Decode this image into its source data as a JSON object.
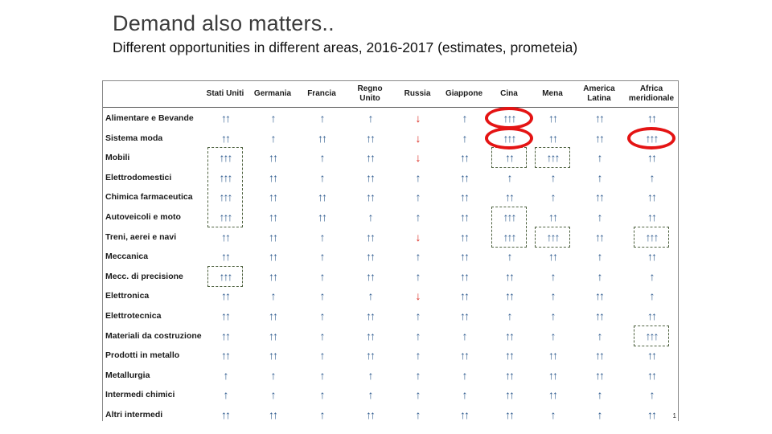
{
  "title": "Demand also matters..",
  "subtitle": "Different opportunities in different areas, 2016-2017 (estimates, prometeia)",
  "page_number": "1",
  "colors": {
    "up": "#2f5b8f",
    "down": "#d9261c",
    "highlight": "#e41414",
    "dashed_box": "#4f6240"
  },
  "symbols": {
    "up": "↑",
    "down": "↓"
  },
  "table": {
    "columns": [
      "Stati Uniti",
      "Germania",
      "Francia",
      "Regno\nUnito",
      "Russia",
      "Giappone",
      "Cina",
      "Mena",
      "America\nLatina",
      "Africa\nmeridionale"
    ],
    "rows": [
      {
        "label": "Alimentare e Bevande",
        "cells": [
          "2",
          "1",
          "1",
          "1",
          "d",
          "1",
          "3",
          "2",
          "2",
          "2"
        ]
      },
      {
        "label": "Sistema moda",
        "cells": [
          "2",
          "1",
          "2",
          "2",
          "d",
          "1",
          "3",
          "2",
          "2",
          "3"
        ]
      },
      {
        "label": "Mobili",
        "cells": [
          "3",
          "2",
          "1",
          "2",
          "d",
          "2",
          "2",
          "3",
          "1",
          "2"
        ]
      },
      {
        "label": "Elettrodomestici",
        "cells": [
          "3",
          "2",
          "1",
          "2",
          "1",
          "2",
          "1",
          "1",
          "1",
          "1"
        ]
      },
      {
        "label": "Chimica farmaceutica",
        "cells": [
          "3",
          "2",
          "2",
          "2",
          "1",
          "2",
          "2",
          "1",
          "2",
          "2"
        ]
      },
      {
        "label": "Autoveicoli e moto",
        "cells": [
          "3",
          "2",
          "2",
          "1",
          "1",
          "2",
          "3",
          "2",
          "1",
          "2"
        ]
      },
      {
        "label": "Treni, aerei e navi",
        "cells": [
          "2",
          "2",
          "1",
          "2",
          "d",
          "2",
          "3",
          "3",
          "2",
          "3"
        ]
      },
      {
        "label": "Meccanica",
        "cells": [
          "2",
          "2",
          "1",
          "2",
          "1",
          "2",
          "1",
          "2",
          "1",
          "2"
        ]
      },
      {
        "label": "Mecc. di precisione",
        "cells": [
          "3",
          "2",
          "1",
          "2",
          "1",
          "2",
          "2",
          "1",
          "1",
          "1"
        ]
      },
      {
        "label": "Elettronica",
        "cells": [
          "2",
          "1",
          "1",
          "1",
          "d",
          "2",
          "2",
          "1",
          "2",
          "1"
        ]
      },
      {
        "label": "Elettrotecnica",
        "cells": [
          "2",
          "2",
          "1",
          "2",
          "1",
          "2",
          "1",
          "1",
          "2",
          "2"
        ]
      },
      {
        "label": "Materiali da costruzione",
        "cells": [
          "2",
          "2",
          "1",
          "2",
          "1",
          "1",
          "2",
          "1",
          "1",
          "3"
        ]
      },
      {
        "label": "Prodotti in metallo",
        "cells": [
          "2",
          "2",
          "1",
          "2",
          "1",
          "2",
          "2",
          "2",
          "2",
          "2"
        ]
      },
      {
        "label": "Metallurgia",
        "cells": [
          "1",
          "1",
          "1",
          "1",
          "1",
          "1",
          "2",
          "2",
          "2",
          "2"
        ]
      },
      {
        "label": "Intermedi chimici",
        "cells": [
          "1",
          "1",
          "1",
          "1",
          "1",
          "1",
          "2",
          "2",
          "1",
          "1"
        ]
      },
      {
        "label": "Altri intermedi",
        "cells": [
          "2",
          "2",
          "1",
          "2",
          "1",
          "2",
          "2",
          "1",
          "1",
          "2"
        ]
      }
    ],
    "dashed_boxes": [
      {
        "column": "Stati Uniti",
        "rows": [
          "Mobili",
          "Elettrodomestici",
          "Chimica farmaceutica",
          "Autoveicoli e moto"
        ]
      },
      {
        "column": "Stati Uniti",
        "rows": [
          "Mecc. di precisione"
        ]
      },
      {
        "column": "Cina",
        "rows": [
          "Mobili"
        ]
      },
      {
        "column": "Cina",
        "rows": [
          "Autoveicoli e moto",
          "Treni, aerei e navi"
        ]
      },
      {
        "column": "Mena",
        "rows": [
          "Mobili"
        ]
      },
      {
        "column": "Mena",
        "rows": [
          "Treni, aerei e navi"
        ]
      },
      {
        "column": "Africa\nmeridionale",
        "rows": [
          "Treni, aerei e navi"
        ]
      },
      {
        "column": "Africa\nmeridionale",
        "rows": [
          "Materiali da costruzione"
        ]
      }
    ],
    "highlighted_cells": [
      {
        "column": "Cina",
        "row": "Alimentare e Bevande"
      },
      {
        "column": "Cina",
        "row": "Sistema moda"
      },
      {
        "column": "Africa\nmeridionale",
        "row": "Sistema moda"
      }
    ]
  }
}
